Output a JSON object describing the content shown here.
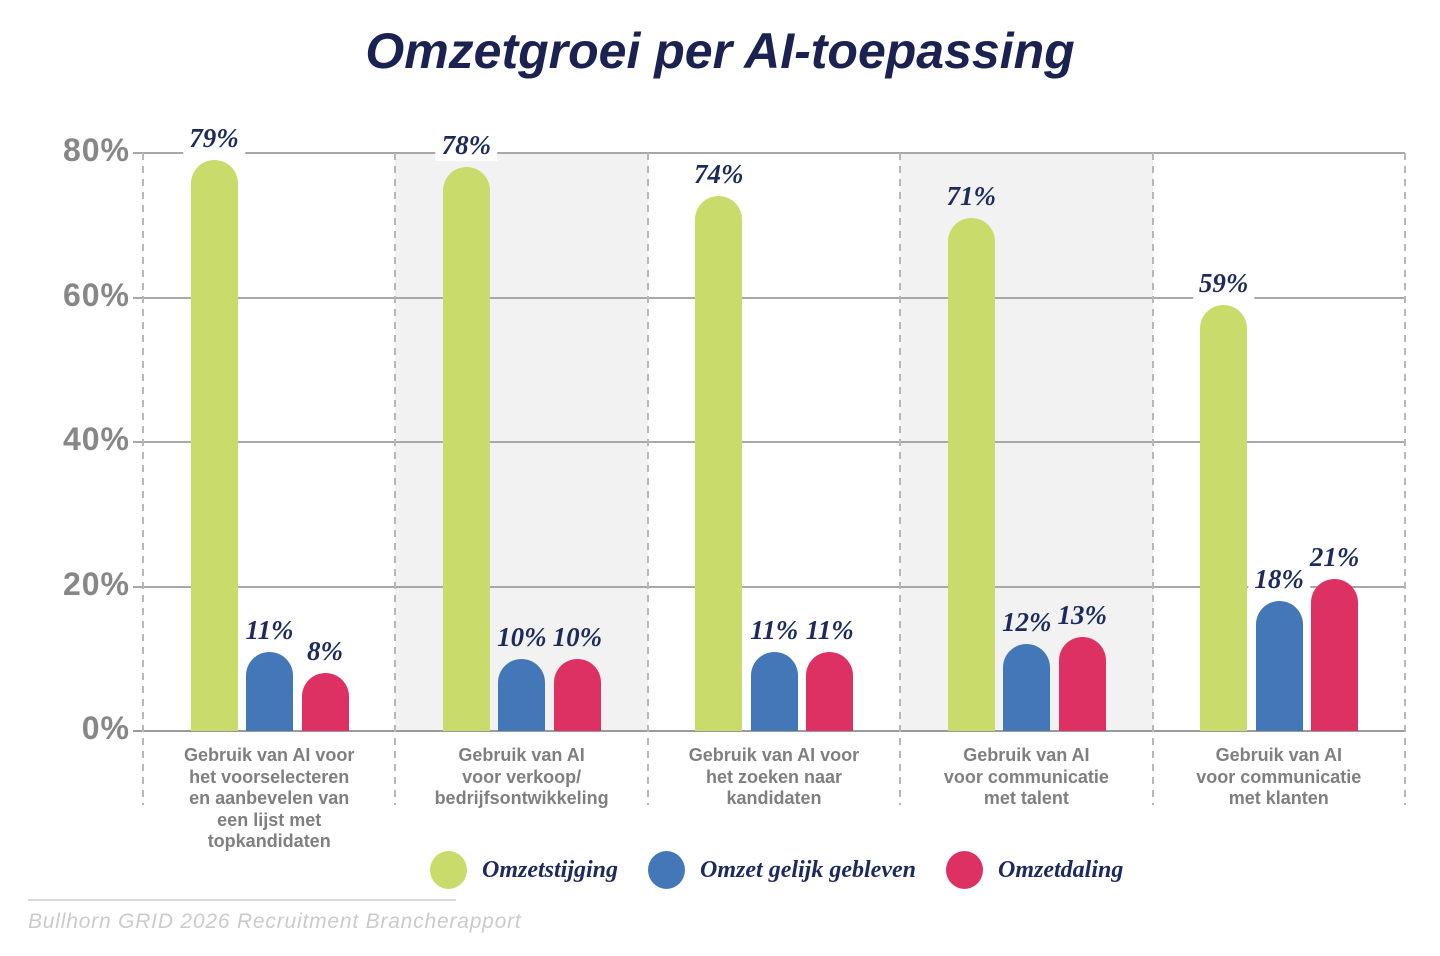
{
  "title": "Omzetgroei per AI-toepassing",
  "source_note": "Bullhorn GRID 2026 Recruitment Brancherapport",
  "colors": {
    "green": "#c9dc6b",
    "blue": "#4477b7",
    "pink": "#de3163",
    "navy_text": "#1c2a5c",
    "title_navy": "#1b2150",
    "axis_gray": "#878787",
    "category_gray": "#7f7f7f",
    "band_gray": "#f2f2f2",
    "gridline_gray": "#a8a8a8",
    "source_gray": "#cbcbcb"
  },
  "chart_data": {
    "type": "bar",
    "title": "Omzetgroei per AI-toepassing",
    "unit": "%",
    "ylim": [
      0,
      80
    ],
    "y_ticks": [
      {
        "value": 0,
        "label": "0%"
      },
      {
        "value": 20,
        "label": "20%"
      },
      {
        "value": 40,
        "label": "40%"
      },
      {
        "value": 60,
        "label": "60%"
      },
      {
        "value": 80,
        "label": "80%"
      }
    ],
    "grid": true,
    "legend_position": "bottom",
    "categories": [
      [
        "Gebruik van AI voor",
        "het voorselecteren",
        "en aanbevelen van",
        "een lijst met",
        "topkandidaten"
      ],
      [
        "Gebruik van AI",
        "voor verkoop/",
        "bedrijfsontwikkeling"
      ],
      [
        "Gebruik van AI voor",
        "het zoeken naar",
        "kandidaten"
      ],
      [
        "Gebruik van AI",
        "voor communicatie",
        "met talent"
      ],
      [
        "Gebruik van AI",
        "voor communicatie",
        "met klanten"
      ]
    ],
    "shaded_columns": [
      1,
      3
    ],
    "series": [
      {
        "name": "Omzetstijging",
        "color_key": "green",
        "values": [
          79,
          78,
          74,
          71,
          59
        ]
      },
      {
        "name": "Omzet gelijk gebleven",
        "color_key": "blue",
        "values": [
          11,
          10,
          11,
          12,
          18
        ]
      },
      {
        "name": "Omzetdaling",
        "color_key": "pink",
        "values": [
          8,
          10,
          11,
          13,
          21
        ]
      }
    ]
  },
  "legend": {
    "items": [
      "Omzetstijging",
      "Omzet gelijk gebleven",
      "Omzetdaling"
    ]
  }
}
